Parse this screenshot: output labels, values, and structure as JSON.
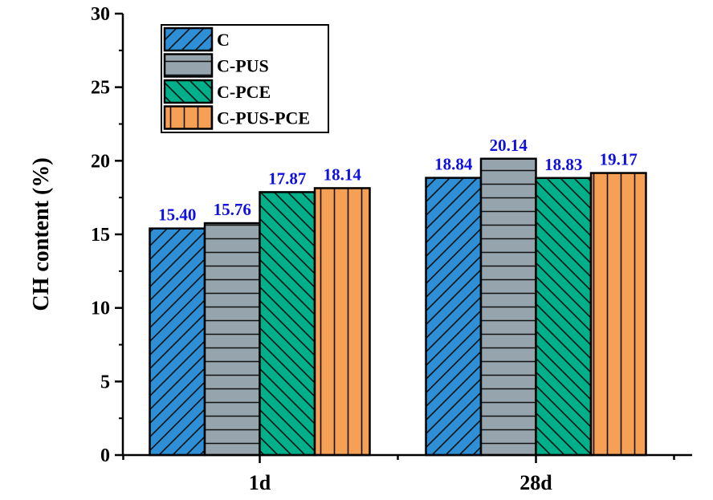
{
  "chart_data": {
    "type": "bar",
    "title": "",
    "xlabel": "",
    "ylabel": "CH content (%)",
    "ylim": [
      0,
      30
    ],
    "yticks": [
      "0",
      "5",
      "10",
      "15",
      "20",
      "25",
      "30"
    ],
    "categories": [
      "1d",
      "28d"
    ],
    "series": [
      {
        "name": "C",
        "values": [
          15.4,
          18.84
        ],
        "labels": [
          "15.40",
          "18.84"
        ],
        "color": "#2E8FD6",
        "pattern": "diag-up"
      },
      {
        "name": "C-PUS",
        "values": [
          15.76,
          20.14
        ],
        "labels": [
          "15.76",
          "20.14"
        ],
        "color": "#96A4AE",
        "pattern": "horizontal"
      },
      {
        "name": "C-PCE",
        "values": [
          17.87,
          18.83
        ],
        "labels": [
          "17.87",
          "18.83"
        ],
        "color": "#00B08A",
        "pattern": "diag-down"
      },
      {
        "name": "C-PUS-PCE",
        "values": [
          18.14,
          19.17
        ],
        "labels": [
          "18.14",
          "19.17"
        ],
        "color": "#F5A055",
        "pattern": "vertical"
      }
    ],
    "label_color": "#1010E0",
    "legend_position": "top-left",
    "grid": false
  }
}
